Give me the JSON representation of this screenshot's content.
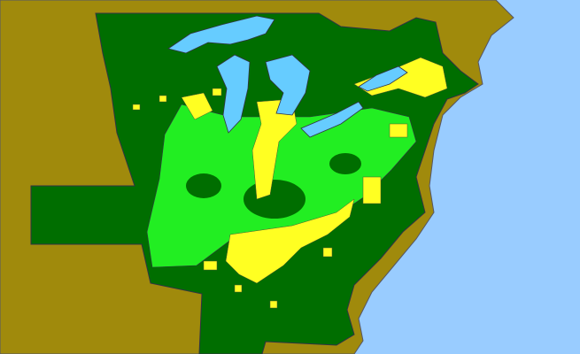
{
  "map": {
    "colors": {
      "ocean": "#99ccff",
      "lakes": "#66ccff",
      "outside_range": "#a08a0c",
      "range_base": "#006e00",
      "range_green": "#22ee22",
      "range_yellow": "#ffff22",
      "borders": "#555566"
    }
  }
}
